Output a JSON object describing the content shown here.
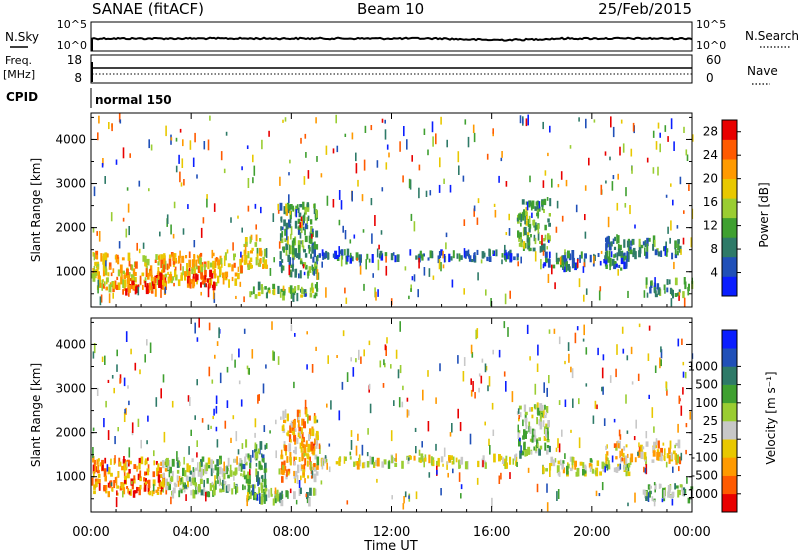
{
  "header": {
    "station": "SANAE (fitACF)",
    "beam": "Beam 10",
    "date": "25/Feb/2015"
  },
  "top_panels": {
    "nsky": {
      "label": "N.Sky",
      "ticks": [
        "10^5",
        "10^0"
      ],
      "right_label": "N.Search",
      "right_ticks": [
        "10^5",
        "10^0"
      ]
    },
    "freq": {
      "label_line1": "Freq.",
      "label_line2": "[MHz]",
      "ticks": [
        "18",
        "8"
      ],
      "right_label": "Nave",
      "right_ticks": [
        "60",
        "0"
      ]
    },
    "cpid": {
      "label": "CPID",
      "value": "normal 150"
    }
  },
  "x_axis": {
    "label": "Time UT",
    "ticks": [
      "00:00",
      "04:00",
      "08:00",
      "12:00",
      "16:00",
      "20:00",
      "00:00"
    ]
  },
  "colors": {
    "power": [
      "#0a1eff",
      "#2050b8",
      "#2e7a68",
      "#3fa030",
      "#9acd32",
      "#e8c800",
      "#ff9a00",
      "#ff5a00",
      "#e80000"
    ],
    "velocity": [
      "#e80000",
      "#ff5a00",
      "#ff9a00",
      "#e8c800",
      "#c8c8c8",
      "#9acd32",
      "#3fa030",
      "#2e7a68",
      "#2050b8",
      "#0a1eff"
    ]
  },
  "chart_data": [
    {
      "type": "heatmap",
      "name": "power-panel",
      "ylabel": "Slant Range [km]",
      "ylim": [
        200,
        4600
      ],
      "yticks": [
        "1000",
        "2000",
        "3000",
        "4000"
      ],
      "xlim": [
        0,
        24
      ],
      "colorbar": {
        "label": "Power [dB]",
        "ticks": [
          "4",
          "8",
          "12",
          "16",
          "20",
          "24",
          "28"
        ],
        "range": [
          0,
          30
        ]
      },
      "clusters": [
        {
          "t0": 0.0,
          "t1": 3.0,
          "r0": 600,
          "r1": 1400,
          "level": 0.65
        },
        {
          "t0": 1.2,
          "t1": 3.0,
          "r0": 500,
          "r1": 900,
          "level": 0.85
        },
        {
          "t0": 2.8,
          "t1": 6.0,
          "r0": 700,
          "r1": 1400,
          "level": 0.7
        },
        {
          "t0": 3.8,
          "t1": 5.0,
          "r0": 600,
          "r1": 1000,
          "level": 0.9
        },
        {
          "t0": 6.0,
          "t1": 7.0,
          "r0": 1100,
          "r1": 1800,
          "level": 0.6
        },
        {
          "t0": 6.2,
          "t1": 9.0,
          "r0": 400,
          "r1": 700,
          "level": 0.45
        },
        {
          "t0": 7.5,
          "t1": 9.0,
          "r0": 900,
          "r1": 2500,
          "level": 0.35
        },
        {
          "t0": 9.0,
          "t1": 17.0,
          "r0": 1250,
          "r1": 1450,
          "level": 0.25
        },
        {
          "t0": 17.0,
          "t1": 18.3,
          "r0": 1500,
          "r1": 2600,
          "level": 0.4
        },
        {
          "t0": 18.0,
          "t1": 21.5,
          "r0": 1050,
          "r1": 1400,
          "level": 0.25
        },
        {
          "t0": 20.5,
          "t1": 23.5,
          "r0": 1350,
          "r1": 1750,
          "level": 0.28
        },
        {
          "t0": 22.0,
          "t1": 24.0,
          "r0": 450,
          "r1": 800,
          "level": 0.35
        }
      ]
    },
    {
      "type": "heatmap",
      "name": "velocity-panel",
      "ylabel": "Slant Range [km]",
      "ylim": [
        200,
        4600
      ],
      "yticks": [
        "1000",
        "2000",
        "3000",
        "4000"
      ],
      "xlim": [
        0,
        24
      ],
      "colorbar": {
        "label": "Velocity [m s⁻¹]",
        "ticks": [
          "-1000",
          "-500",
          "-100",
          "-25",
          "25",
          "100",
          "500",
          "1000"
        ],
        "range": [
          -1250,
          1250
        ]
      },
      "clusters": [
        {
          "t0": 0.0,
          "t1": 3.0,
          "r0": 600,
          "r1": 1400,
          "level": 0.22
        },
        {
          "t0": 2.8,
          "t1": 6.0,
          "r0": 600,
          "r1": 1400,
          "level": 0.55
        },
        {
          "t0": 6.0,
          "t1": 7.0,
          "r0": 700,
          "r1": 1800,
          "level": 0.65
        },
        {
          "t0": 6.2,
          "t1": 9.0,
          "r0": 400,
          "r1": 700,
          "level": 0.6
        },
        {
          "t0": 7.5,
          "t1": 9.0,
          "r0": 900,
          "r1": 2500,
          "level": 0.3
        },
        {
          "t0": 9.0,
          "t1": 17.0,
          "r0": 1250,
          "r1": 1450,
          "level": 0.45
        },
        {
          "t0": 17.0,
          "t1": 18.3,
          "r0": 1500,
          "r1": 2600,
          "level": 0.55
        },
        {
          "t0": 18.0,
          "t1": 21.5,
          "r0": 1050,
          "r1": 1400,
          "level": 0.45
        },
        {
          "t0": 20.5,
          "t1": 23.5,
          "r0": 1350,
          "r1": 1750,
          "level": 0.35
        },
        {
          "t0": 22.0,
          "t1": 24.0,
          "r0": 450,
          "r1": 800,
          "level": 0.55
        }
      ]
    }
  ]
}
